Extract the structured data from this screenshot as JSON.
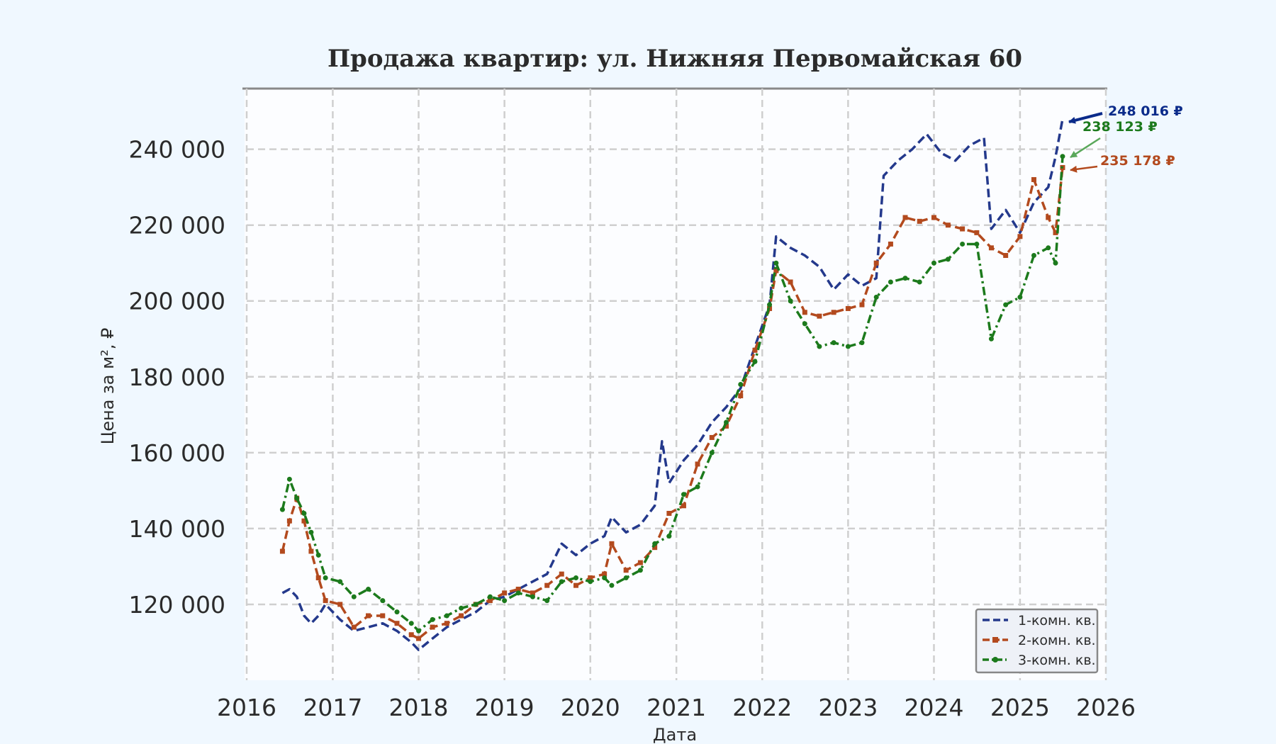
{
  "chart_data": {
    "type": "line",
    "title": "Продажа квартир: ул. Нижняя Первомайская 60",
    "xlabel": "Дата",
    "ylabel": "Цена за м², ₽",
    "xlim": [
      "2016-01-01",
      "2026-01-01"
    ],
    "ylim": [
      100000,
      256000
    ],
    "x_ticks": [
      "2016",
      "2017",
      "2018",
      "2019",
      "2020",
      "2021",
      "2022",
      "2023",
      "2024",
      "2025",
      "2026"
    ],
    "y_ticks": [
      {
        "value": 120000,
        "label": "120 000"
      },
      {
        "value": 140000,
        "label": "140 000"
      },
      {
        "value": 160000,
        "label": "160 000"
      },
      {
        "value": 180000,
        "label": "180 000"
      },
      {
        "value": 200000,
        "label": "200 000"
      },
      {
        "value": 220000,
        "label": "220 000"
      },
      {
        "value": 240000,
        "label": "240 000"
      }
    ],
    "grid": true,
    "legend_position": "lower-right",
    "series": [
      {
        "name": "1-комн. кв.",
        "color": "#24398c",
        "line_style": "dashed",
        "marker": "none",
        "x": [
          "2016-06",
          "2016-07",
          "2016-08",
          "2016-09",
          "2016-10",
          "2016-11",
          "2016-12",
          "2017-02",
          "2017-04",
          "2017-06",
          "2017-08",
          "2017-10",
          "2017-12",
          "2018-01",
          "2018-03",
          "2018-05",
          "2018-07",
          "2018-09",
          "2018-11",
          "2019-01",
          "2019-03",
          "2019-05",
          "2019-07",
          "2019-09",
          "2019-11",
          "2020-01",
          "2020-03",
          "2020-04",
          "2020-06",
          "2020-08",
          "2020-10",
          "2020-11",
          "2020-12",
          "2021-02",
          "2021-04",
          "2021-06",
          "2021-08",
          "2021-10",
          "2021-12",
          "2022-02",
          "2022-03",
          "2022-05",
          "2022-07",
          "2022-09",
          "2022-11",
          "2023-01",
          "2023-03",
          "2023-05",
          "2023-06",
          "2023-08",
          "2023-10",
          "2023-12",
          "2024-02",
          "2024-04",
          "2024-06",
          "2024-08",
          "2024-09",
          "2024-11",
          "2025-01",
          "2025-03",
          "2025-05",
          "2025-06",
          "2025-07"
        ],
        "values": [
          123000,
          124000,
          122000,
          117000,
          115000,
          117000,
          120000,
          116000,
          113000,
          114000,
          115000,
          113000,
          110000,
          108000,
          111000,
          114000,
          116000,
          118000,
          121000,
          122000,
          124000,
          126000,
          128000,
          136000,
          133000,
          136000,
          138000,
          143000,
          139000,
          141000,
          146000,
          163000,
          152000,
          158000,
          162000,
          168000,
          172000,
          177000,
          188000,
          199000,
          217000,
          214000,
          212000,
          209000,
          203000,
          207000,
          204000,
          206000,
          233000,
          237000,
          240000,
          244000,
          239000,
          237000,
          241000,
          243000,
          219000,
          224000,
          218000,
          226000,
          230000,
          238000,
          248016
        ]
      },
      {
        "name": "2-комн. кв.",
        "color": "#b34a1e",
        "line_style": "dashed",
        "marker": "square",
        "x": [
          "2016-06",
          "2016-07",
          "2016-08",
          "2016-09",
          "2016-10",
          "2016-11",
          "2016-12",
          "2017-02",
          "2017-04",
          "2017-06",
          "2017-08",
          "2017-10",
          "2017-12",
          "2018-01",
          "2018-03",
          "2018-05",
          "2018-07",
          "2018-09",
          "2018-11",
          "2019-01",
          "2019-03",
          "2019-05",
          "2019-07",
          "2019-09",
          "2019-11",
          "2020-01",
          "2020-03",
          "2020-04",
          "2020-06",
          "2020-08",
          "2020-10",
          "2020-12",
          "2021-02",
          "2021-04",
          "2021-06",
          "2021-08",
          "2021-10",
          "2021-12",
          "2022-02",
          "2022-03",
          "2022-05",
          "2022-07",
          "2022-09",
          "2022-11",
          "2023-01",
          "2023-03",
          "2023-05",
          "2023-07",
          "2023-09",
          "2023-11",
          "2024-01",
          "2024-03",
          "2024-05",
          "2024-07",
          "2024-09",
          "2024-11",
          "2025-01",
          "2025-03",
          "2025-05",
          "2025-06",
          "2025-07"
        ],
        "values": [
          134000,
          142000,
          148000,
          142000,
          134000,
          127000,
          121000,
          120000,
          114000,
          117000,
          117000,
          115000,
          112000,
          111000,
          114000,
          115000,
          117000,
          120000,
          121000,
          123000,
          124000,
          123000,
          125000,
          128000,
          125000,
          127000,
          128000,
          136000,
          129000,
          131000,
          135000,
          144000,
          146000,
          157000,
          164000,
          167000,
          175000,
          187000,
          198000,
          208000,
          205000,
          197000,
          196000,
          197000,
          198000,
          199000,
          210000,
          215000,
          222000,
          221000,
          222000,
          220000,
          219000,
          218000,
          214000,
          212000,
          217000,
          232000,
          222000,
          218000,
          235178
        ]
      },
      {
        "name": "3-комн. кв.",
        "color": "#1c7a1c",
        "line_style": "dashdot",
        "marker": "circle",
        "x": [
          "2016-06",
          "2016-07",
          "2016-08",
          "2016-09",
          "2016-10",
          "2016-11",
          "2016-12",
          "2017-02",
          "2017-04",
          "2017-06",
          "2017-08",
          "2017-10",
          "2017-12",
          "2018-01",
          "2018-03",
          "2018-05",
          "2018-07",
          "2018-09",
          "2018-11",
          "2019-01",
          "2019-03",
          "2019-05",
          "2019-07",
          "2019-09",
          "2019-11",
          "2020-01",
          "2020-03",
          "2020-04",
          "2020-06",
          "2020-08",
          "2020-10",
          "2020-12",
          "2021-02",
          "2021-04",
          "2021-06",
          "2021-08",
          "2021-10",
          "2021-12",
          "2022-02",
          "2022-03",
          "2022-05",
          "2022-07",
          "2022-09",
          "2022-11",
          "2023-01",
          "2023-03",
          "2023-05",
          "2023-07",
          "2023-09",
          "2023-11",
          "2024-01",
          "2024-03",
          "2024-05",
          "2024-07",
          "2024-09",
          "2024-11",
          "2025-01",
          "2025-03",
          "2025-05",
          "2025-06",
          "2025-07"
        ],
        "values": [
          145000,
          153000,
          148000,
          144000,
          139000,
          133000,
          127000,
          126000,
          122000,
          124000,
          121000,
          118000,
          115000,
          113000,
          116000,
          117000,
          119000,
          120000,
          122000,
          121000,
          123000,
          122000,
          121000,
          126000,
          127000,
          126000,
          127000,
          125000,
          127000,
          129000,
          136000,
          138000,
          149000,
          151000,
          160000,
          168000,
          178000,
          184000,
          199000,
          210000,
          200000,
          194000,
          188000,
          189000,
          188000,
          189000,
          201000,
          205000,
          206000,
          205000,
          210000,
          211000,
          215000,
          215000,
          190000,
          199000,
          201000,
          212000,
          214000,
          210000,
          238123
        ]
      }
    ],
    "annotations": [
      {
        "series": "1-комн. кв.",
        "x": "2025-07",
        "value": 248016,
        "text": "248 016 ₽",
        "color": "#0b2b8a"
      },
      {
        "series": "3-комн. кв.",
        "x": "2025-07",
        "value": 238123,
        "text": "238 123 ₽",
        "color": "#1c7a1c"
      },
      {
        "series": "2-комн. кв.",
        "x": "2025-07",
        "value": 235178,
        "text": "235 178 ₽",
        "color": "#b34a1e"
      }
    ]
  }
}
